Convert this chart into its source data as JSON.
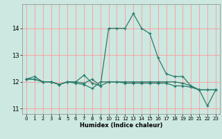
{
  "xlabel": "Humidex (Indice chaleur)",
  "bg_color": "#cce8e0",
  "grid_color": "#ff9999",
  "line_color": "#2a7a6a",
  "xlim": [
    -0.5,
    23.5
  ],
  "ylim": [
    10.8,
    14.9
  ],
  "yticks": [
    11,
    12,
    13,
    14
  ],
  "xticks": [
    0,
    1,
    2,
    3,
    4,
    5,
    6,
    7,
    8,
    9,
    10,
    11,
    12,
    13,
    14,
    15,
    16,
    17,
    18,
    19,
    20,
    21,
    22,
    23
  ],
  "series": [
    [
      12.1,
      12.2,
      12.0,
      12.0,
      11.9,
      12.0,
      12.0,
      11.95,
      12.1,
      11.85,
      14.0,
      14.0,
      14.0,
      14.55,
      14.0,
      13.8,
      12.9,
      12.3,
      12.2,
      12.2,
      11.85,
      11.7,
      11.1,
      11.7
    ],
    [
      12.1,
      12.1,
      12.0,
      12.0,
      11.9,
      12.0,
      12.0,
      12.25,
      11.95,
      11.85,
      12.0,
      12.0,
      12.0,
      12.0,
      12.0,
      12.0,
      12.0,
      12.0,
      12.0,
      11.95,
      11.85,
      11.7,
      11.7,
      11.7
    ],
    [
      12.1,
      12.1,
      12.0,
      12.0,
      11.9,
      12.0,
      11.95,
      11.9,
      11.75,
      12.0,
      12.0,
      12.0,
      11.95,
      11.95,
      11.95,
      11.95,
      11.95,
      11.95,
      11.85,
      11.85,
      11.8,
      11.7,
      11.7,
      11.7
    ]
  ]
}
